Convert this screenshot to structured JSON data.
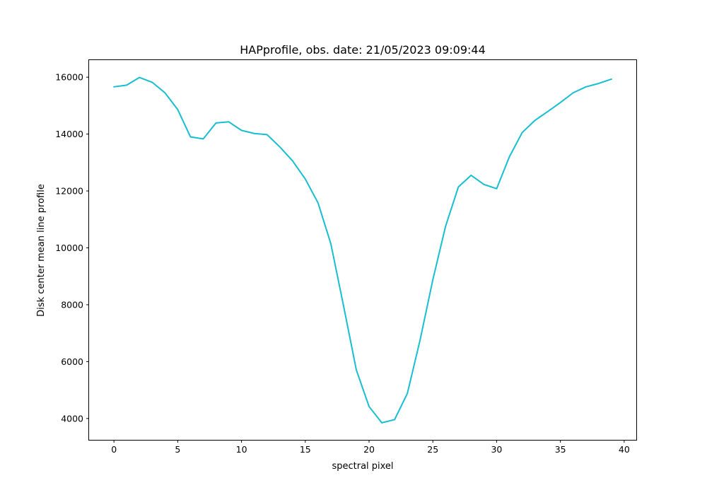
{
  "chart_data": {
    "type": "line",
    "title": "HAPprofile, obs. date: 21/05/2023 09:09:44",
    "xlabel": "spectral pixel",
    "ylabel": "Disk center mean line profile",
    "xlim": [
      -1.95,
      40.95
    ],
    "ylim": [
      3250,
      16600
    ],
    "xticks": [
      0,
      5,
      10,
      15,
      20,
      25,
      30,
      35,
      40
    ],
    "yticks": [
      4000,
      6000,
      8000,
      10000,
      12000,
      14000,
      16000
    ],
    "grid": false,
    "line_color": "#17becf",
    "series": [
      {
        "x": [
          0,
          1,
          2,
          3,
          4,
          5,
          6,
          7,
          8,
          9,
          10,
          11,
          12,
          13,
          14,
          15,
          16,
          17,
          18,
          19,
          20,
          21,
          22,
          23,
          24,
          25,
          26,
          27,
          28,
          29,
          30,
          31,
          32,
          33,
          34,
          35,
          36,
          37,
          38,
          39
        ],
        "values": [
          15660,
          15720,
          15990,
          15820,
          15450,
          14860,
          13900,
          13830,
          14390,
          14430,
          14130,
          14020,
          13980,
          13550,
          13060,
          12420,
          11580,
          10150,
          7960,
          5710,
          4420,
          3850,
          3960,
          4880,
          6760,
          8880,
          10760,
          12140,
          12550,
          12230,
          12080,
          13200,
          14050,
          14480,
          14790,
          15110,
          15450,
          15660,
          15780,
          15930
        ]
      }
    ]
  }
}
